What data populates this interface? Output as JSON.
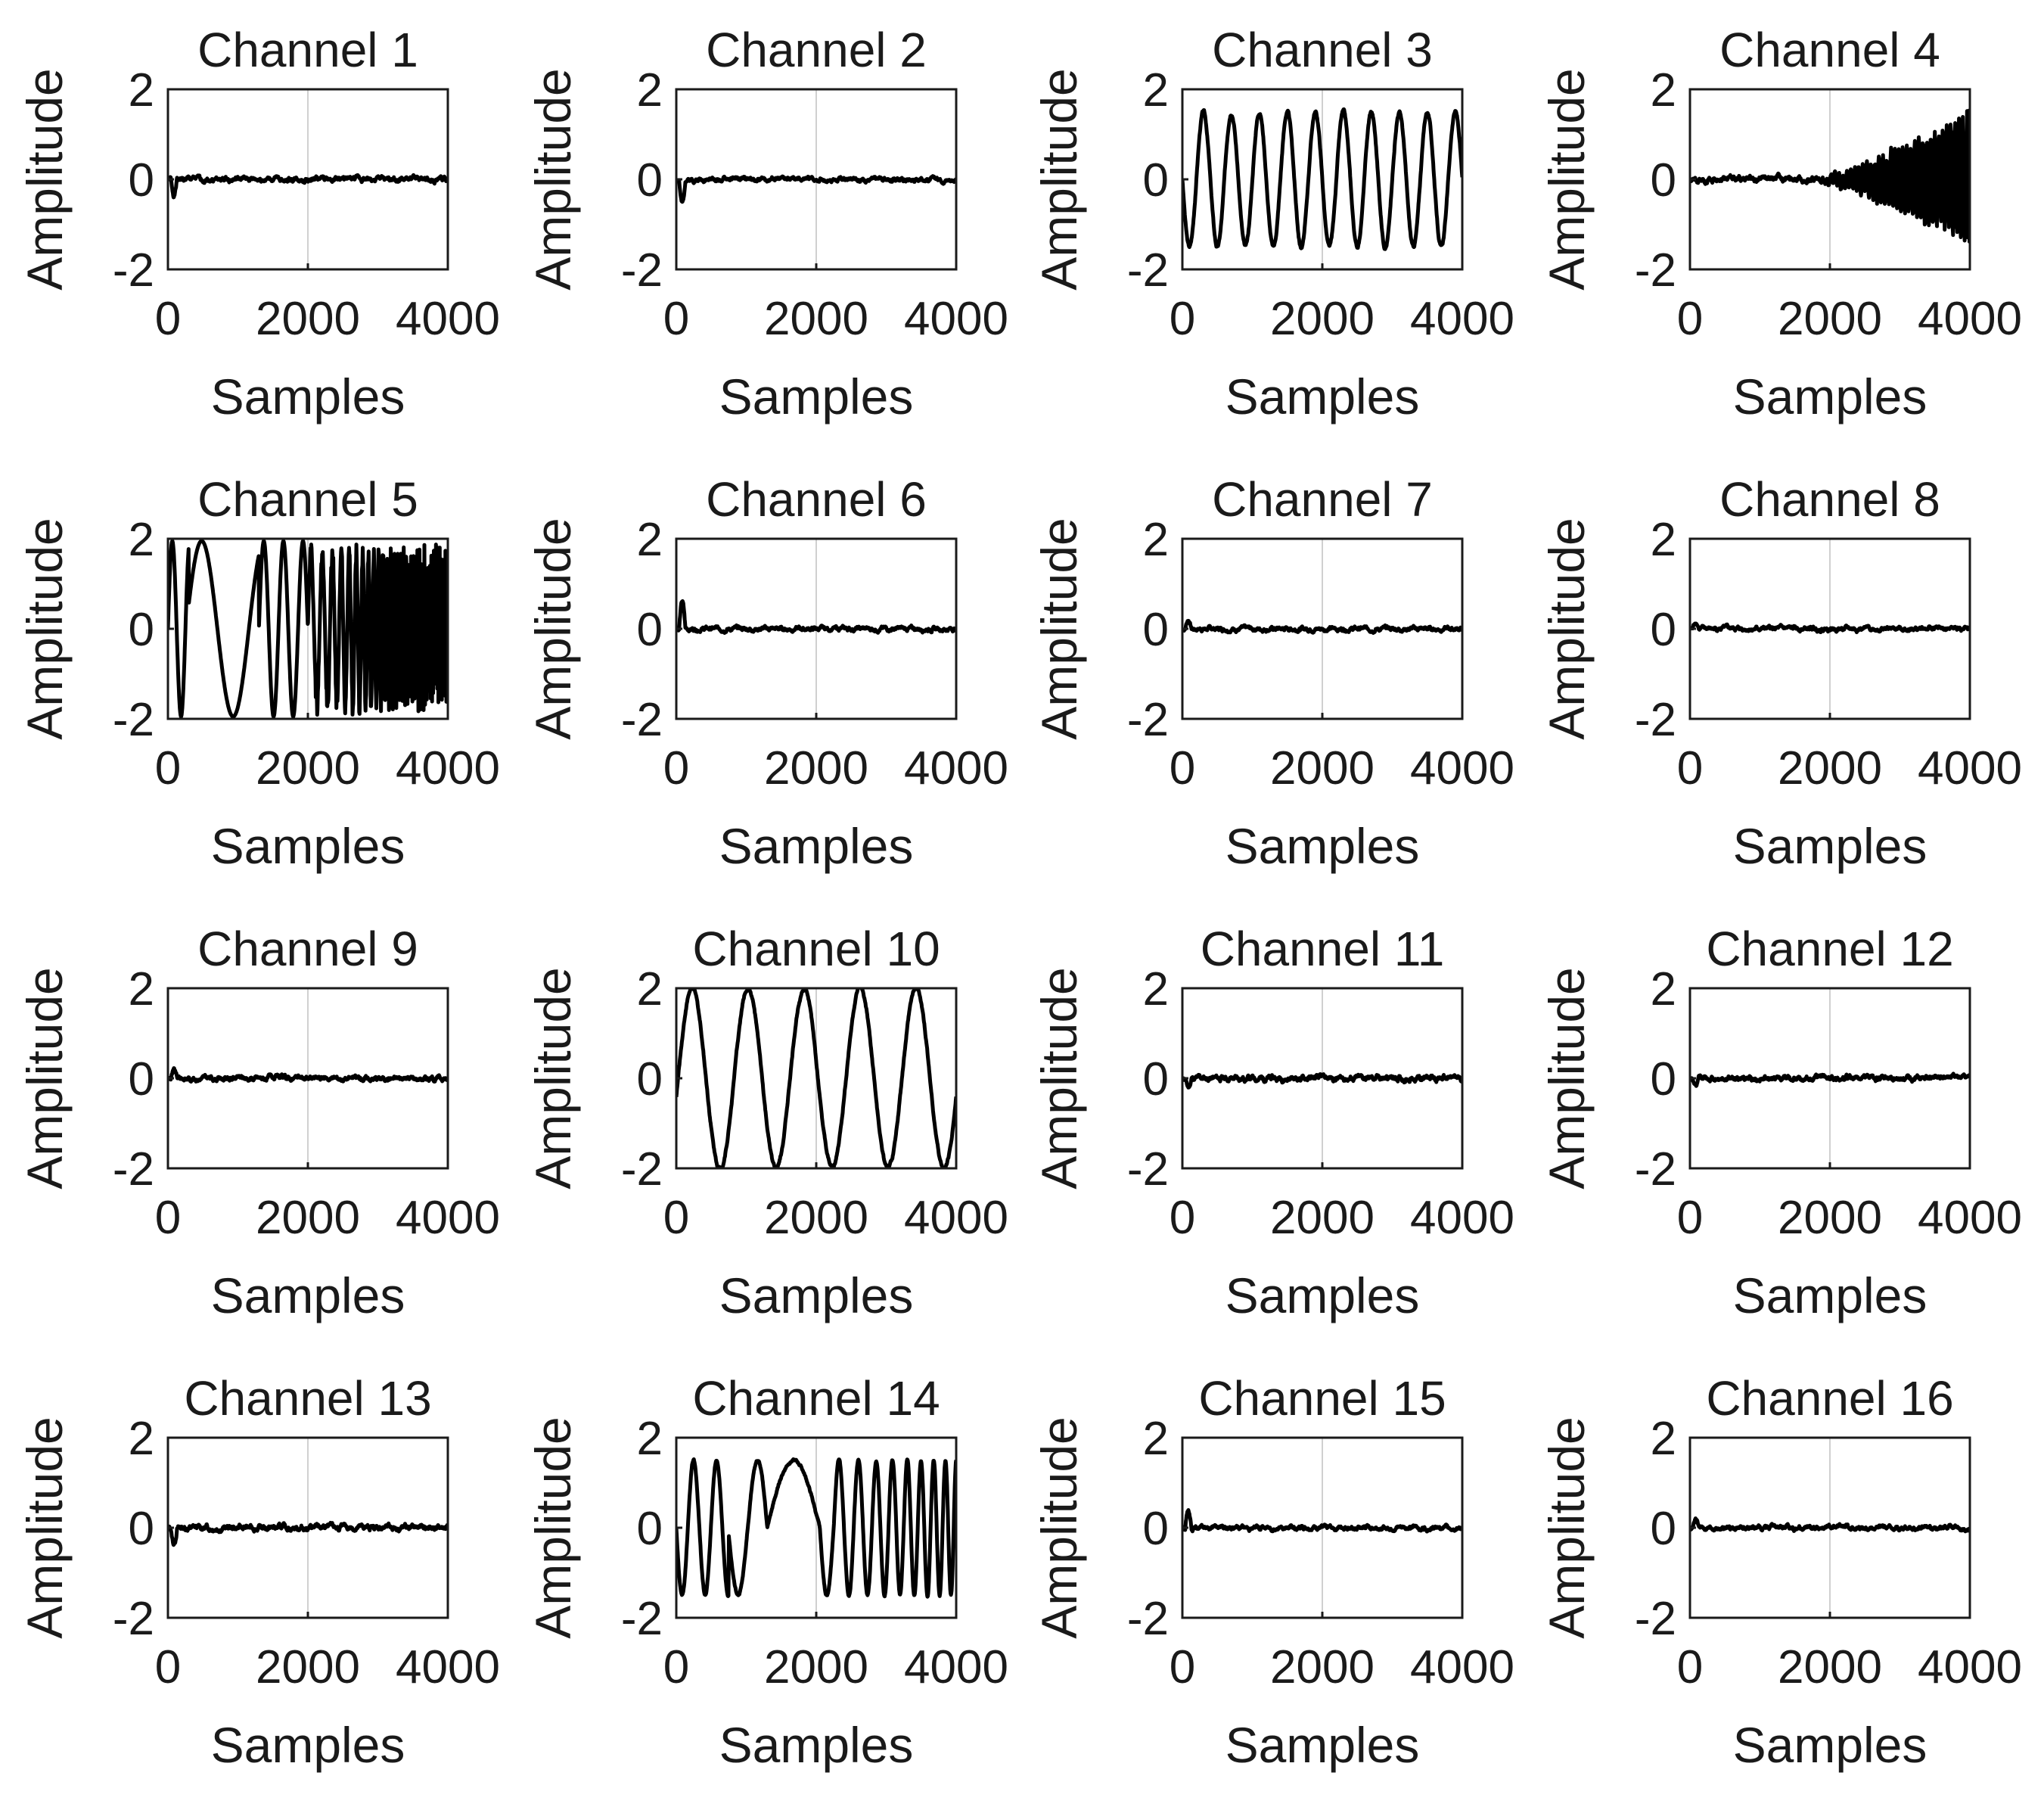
{
  "figure": {
    "grid_rows": 4,
    "grid_cols": 4,
    "line_color": "#000000",
    "grid_color": "#d0d0d0",
    "axis_color": "#1a1a1a"
  },
  "chart_data": [
    {
      "type": "line",
      "title": "Channel 1",
      "xlabel": "Samples",
      "ylabel": "Amplitude",
      "xlim": [
        0,
        4000
      ],
      "ylim": [
        -2,
        2
      ],
      "xticks": [
        "0",
        "2000",
        "4000"
      ],
      "yticks": [
        "2",
        "0",
        "-2"
      ],
      "grid": "vertical-at-2000",
      "signal": {
        "kind": "noise",
        "amplitude": 0.07,
        "startup_spike": -0.35,
        "seed": 1
      }
    },
    {
      "type": "line",
      "title": "Channel 2",
      "xlabel": "Samples",
      "ylabel": "Amplitude",
      "xlim": [
        0,
        4000
      ],
      "ylim": [
        -2,
        2
      ],
      "xticks": [
        "0",
        "2000",
        "4000"
      ],
      "yticks": [
        "2",
        "0",
        "-2"
      ],
      "grid": "vertical-at-2000",
      "signal": {
        "kind": "noise",
        "amplitude": 0.06,
        "startup_spike": -0.55,
        "seed": 2
      }
    },
    {
      "type": "line",
      "title": "Channel 3",
      "xlabel": "Samples",
      "ylabel": "Amplitude",
      "xlim": [
        0,
        4000
      ],
      "ylim": [
        -2,
        2
      ],
      "xticks": [
        "0",
        "2000",
        "4000"
      ],
      "yticks": [
        "2",
        "0",
        "-2"
      ],
      "grid": "vertical-at-2000",
      "signal": {
        "kind": "sine",
        "amplitude": 1.5,
        "cycles": 10,
        "phase": 3.14,
        "seed": 3
      }
    },
    {
      "type": "line",
      "title": "Channel 4",
      "xlabel": "Samples",
      "ylabel": "Amplitude",
      "xlim": [
        0,
        4000
      ],
      "ylim": [
        -2,
        2
      ],
      "xticks": [
        "0",
        "2000",
        "4000"
      ],
      "yticks": [
        "2",
        "0",
        "-2"
      ],
      "grid": "vertical-at-2000",
      "signal": {
        "kind": "growing-oscillation",
        "amplitude": 1.55,
        "onset": 1800,
        "cycles": 70,
        "seed": 4
      }
    },
    {
      "type": "line",
      "title": "Channel 5",
      "xlabel": "Samples",
      "ylabel": "Amplitude",
      "xlim": [
        0,
        4000
      ],
      "ylim": [
        -2,
        2
      ],
      "xticks": [
        "0",
        "2000",
        "4000"
      ],
      "yticks": [
        "2",
        "0",
        "-2"
      ],
      "grid": "vertical-at-2000",
      "signal": {
        "kind": "mixed-sweep",
        "amplitude": 1.95,
        "seed": 5
      }
    },
    {
      "type": "line",
      "title": "Channel 6",
      "xlabel": "Samples",
      "ylabel": "Amplitude",
      "xlim": [
        0,
        4000
      ],
      "ylim": [
        -2,
        2
      ],
      "xticks": [
        "0",
        "2000",
        "4000"
      ],
      "yticks": [
        "2",
        "0",
        "-2"
      ],
      "grid": "vertical-at-2000",
      "signal": {
        "kind": "noise",
        "amplitude": 0.06,
        "startup_spike": 0.6,
        "seed": 6
      }
    },
    {
      "type": "line",
      "title": "Channel 7",
      "xlabel": "Samples",
      "ylabel": "Amplitude",
      "xlim": [
        0,
        4000
      ],
      "ylim": [
        -2,
        2
      ],
      "xticks": [
        "0",
        "2000",
        "4000"
      ],
      "yticks": [
        "2",
        "0",
        "-2"
      ],
      "grid": "vertical-at-2000",
      "signal": {
        "kind": "noise",
        "amplitude": 0.06,
        "startup_spike": 0.2,
        "seed": 7
      }
    },
    {
      "type": "line",
      "title": "Channel 8",
      "xlabel": "Samples",
      "ylabel": "Amplitude",
      "xlim": [
        0,
        4000
      ],
      "ylim": [
        -2,
        2
      ],
      "xticks": [
        "0",
        "2000",
        "4000"
      ],
      "yticks": [
        "2",
        "0",
        "-2"
      ],
      "grid": "vertical-at-2000",
      "signal": {
        "kind": "noise",
        "amplitude": 0.06,
        "startup_spike": 0.15,
        "seed": 8
      }
    },
    {
      "type": "line",
      "title": "Channel 9",
      "xlabel": "Samples",
      "ylabel": "Amplitude",
      "xlim": [
        0,
        4000
      ],
      "ylim": [
        -2,
        2
      ],
      "xticks": [
        "0",
        "2000",
        "4000"
      ],
      "yticks": [
        "2",
        "0",
        "-2"
      ],
      "grid": "vertical-at-2000",
      "signal": {
        "kind": "noise",
        "amplitude": 0.07,
        "startup_spike": 0.15,
        "seed": 9
      }
    },
    {
      "type": "line",
      "title": "Channel 10",
      "xlabel": "Samples",
      "ylabel": "Amplitude",
      "xlim": [
        0,
        4000
      ],
      "ylim": [
        -2,
        2
      ],
      "xticks": [
        "0",
        "2000",
        "4000"
      ],
      "yticks": [
        "2",
        "0",
        "-2"
      ],
      "grid": "vertical-at-2000",
      "signal": {
        "kind": "sine",
        "amplitude": 2.0,
        "cycles": 5,
        "phase": -0.2,
        "seed": 10
      }
    },
    {
      "type": "line",
      "title": "Channel 11",
      "xlabel": "Samples",
      "ylabel": "Amplitude",
      "xlim": [
        0,
        4000
      ],
      "ylim": [
        -2,
        2
      ],
      "xticks": [
        "0",
        "2000",
        "4000"
      ],
      "yticks": [
        "2",
        "0",
        "-2"
      ],
      "grid": "vertical-at-2000",
      "signal": {
        "kind": "noise",
        "amplitude": 0.08,
        "startup_spike": -0.2,
        "seed": 11
      }
    },
    {
      "type": "line",
      "title": "Channel 12",
      "xlabel": "Samples",
      "ylabel": "Amplitude",
      "xlim": [
        0,
        4000
      ],
      "ylim": [
        -2,
        2
      ],
      "xticks": [
        "0",
        "2000",
        "4000"
      ],
      "yticks": [
        "2",
        "0",
        "-2"
      ],
      "grid": "vertical-at-2000",
      "signal": {
        "kind": "noise",
        "amplitude": 0.07,
        "startup_spike": -0.2,
        "seed": 12
      }
    },
    {
      "type": "line",
      "title": "Channel 13",
      "xlabel": "Samples",
      "ylabel": "Amplitude",
      "xlim": [
        0,
        4000
      ],
      "ylim": [
        -2,
        2
      ],
      "xticks": [
        "0",
        "2000",
        "4000"
      ],
      "yticks": [
        "2",
        "0",
        "-2"
      ],
      "grid": "vertical-at-2000",
      "signal": {
        "kind": "noise",
        "amplitude": 0.08,
        "startup_spike": -0.35,
        "seed": 13
      }
    },
    {
      "type": "line",
      "title": "Channel 14",
      "xlabel": "Samples",
      "ylabel": "Amplitude",
      "xlim": [
        0,
        4000
      ],
      "ylim": [
        -2,
        2
      ],
      "xticks": [
        "0",
        "2000",
        "4000"
      ],
      "yticks": [
        "2",
        "0",
        "-2"
      ],
      "grid": "vertical-at-2000",
      "signal": {
        "kind": "piecewise-sweep",
        "amplitude": 1.5,
        "seed": 14
      }
    },
    {
      "type": "line",
      "title": "Channel 15",
      "xlabel": "Samples",
      "ylabel": "Amplitude",
      "xlim": [
        0,
        4000
      ],
      "ylim": [
        -2,
        2
      ],
      "xticks": [
        "0",
        "2000",
        "4000"
      ],
      "yticks": [
        "2",
        "0",
        "-2"
      ],
      "grid": "vertical-at-2000",
      "signal": {
        "kind": "noise",
        "amplitude": 0.06,
        "startup_spike": 0.4,
        "seed": 15
      }
    },
    {
      "type": "line",
      "title": "Channel 16",
      "xlabel": "Samples",
      "ylabel": "Amplitude",
      "xlim": [
        0,
        4000
      ],
      "ylim": [
        -2,
        2
      ],
      "xticks": [
        "0",
        "2000",
        "4000"
      ],
      "yticks": [
        "2",
        "0",
        "-2"
      ],
      "grid": "vertical-at-2000",
      "signal": {
        "kind": "noise",
        "amplitude": 0.06,
        "startup_spike": 0.15,
        "seed": 16
      }
    }
  ]
}
